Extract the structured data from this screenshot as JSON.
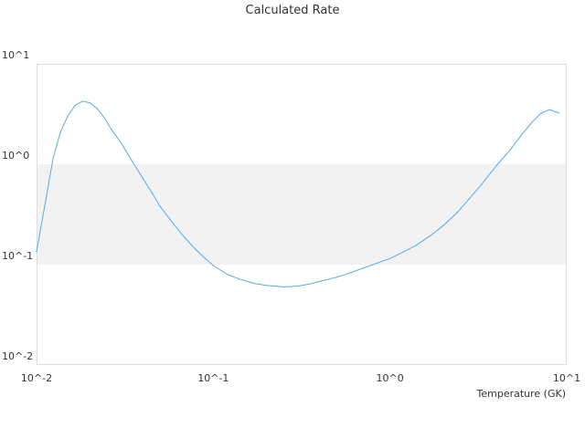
{
  "chart_data": {
    "type": "line",
    "title": "Calculated Rate",
    "xlabel": "Temperature (GK)",
    "ylabel": "",
    "x_scale": "log",
    "y_scale": "log",
    "xlim": [
      0.01,
      10
    ],
    "ylim": [
      0.01,
      10
    ],
    "x_ticks": [
      {
        "value": 0.01,
        "label": "10^-2"
      },
      {
        "value": 0.1,
        "label": "10^-1"
      },
      {
        "value": 1,
        "label": "10^0"
      },
      {
        "value": 10,
        "label": "10^1"
      }
    ],
    "y_ticks": [
      {
        "value": 0.01,
        "label": "10^-2"
      },
      {
        "value": 0.1,
        "label": "10^-1"
      },
      {
        "value": 1,
        "label": "10^0"
      },
      {
        "value": 10,
        "label": "10^1"
      }
    ],
    "shaded_band": {
      "from": 0.1,
      "to": 1,
      "color": "#f2f2f2"
    },
    "grid": false,
    "series": [
      {
        "color": "#5aa9e6",
        "x": [
          0.01,
          0.0113,
          0.0124,
          0.0136,
          0.015,
          0.0165,
          0.0182,
          0.02,
          0.022,
          0.0242,
          0.0266,
          0.03,
          0.035,
          0.04,
          0.045,
          0.05,
          0.06,
          0.07,
          0.08,
          0.09,
          0.1,
          0.12,
          0.14,
          0.17,
          0.2,
          0.25,
          0.3,
          0.35,
          0.4,
          0.5,
          0.6,
          0.7,
          0.8,
          1.0,
          1.2,
          1.4,
          1.7,
          2.0,
          2.4,
          2.8,
          3.3,
          4.0,
          4.8,
          5.6,
          6.4,
          7.2,
          8.0,
          9.0
        ],
        "y": [
          0.135,
          0.45,
          1.15,
          2.05,
          3.0,
          3.85,
          4.25,
          4.1,
          3.6,
          2.9,
          2.2,
          1.65,
          1.05,
          0.72,
          0.52,
          0.38,
          0.25,
          0.18,
          0.14,
          0.115,
          0.098,
          0.08,
          0.072,
          0.065,
          0.062,
          0.06,
          0.061,
          0.064,
          0.068,
          0.075,
          0.083,
          0.092,
          0.1,
          0.115,
          0.135,
          0.155,
          0.195,
          0.245,
          0.33,
          0.45,
          0.63,
          0.97,
          1.4,
          2.0,
          2.65,
          3.25,
          3.5,
          3.25
        ]
      }
    ]
  }
}
